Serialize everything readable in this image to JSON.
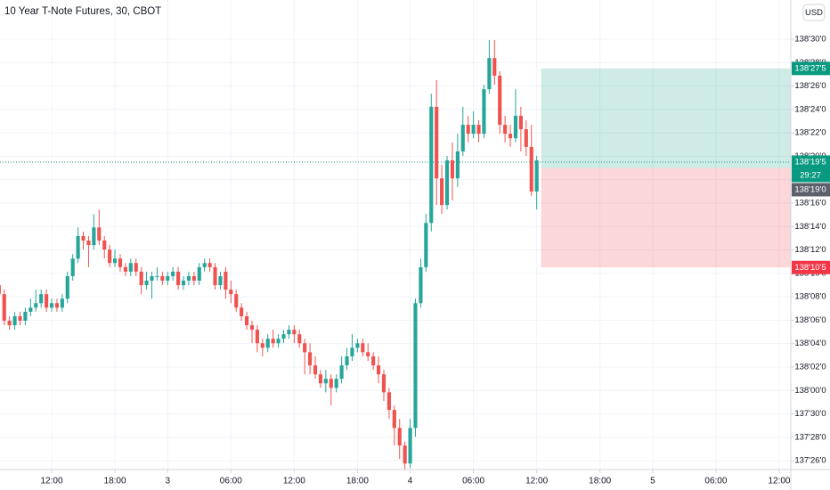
{
  "chart_data": {
    "type": "candlestick",
    "title": "10 Year T-Note Futures, 30, CBOT",
    "currency": "USD",
    "up_color": "#26a69a",
    "down_color": "#ef5350",
    "grid": true,
    "ylim": [
      137.789,
      139.042
    ],
    "xlim": [
      0.2,
      150.2
    ],
    "yticks": [
      {
        "value": 137.8125,
        "label": "137'26'0"
      },
      {
        "value": 137.875,
        "label": "137'28'0"
      },
      {
        "value": 137.9375,
        "label": "137'30'0"
      },
      {
        "value": 138.0,
        "label": "138'00'0"
      },
      {
        "value": 138.0625,
        "label": "138'02'0"
      },
      {
        "value": 138.125,
        "label": "138'04'0"
      },
      {
        "value": 138.1875,
        "label": "138'06'0"
      },
      {
        "value": 138.25,
        "label": "138'08'0"
      },
      {
        "value": 138.3125,
        "label": "138'10'0"
      },
      {
        "value": 138.375,
        "label": "138'12'0"
      },
      {
        "value": 138.4375,
        "label": "138'14'0"
      },
      {
        "value": 138.5,
        "label": "138'16'0"
      },
      {
        "value": 138.5625,
        "label": "138'18'0"
      },
      {
        "value": 138.625,
        "label": "138'20'0"
      },
      {
        "value": 138.6875,
        "label": "138'22'0"
      },
      {
        "value": 138.75,
        "label": "138'24'0"
      },
      {
        "value": 138.8125,
        "label": "138'26'0"
      },
      {
        "value": 138.875,
        "label": "138'28'0"
      },
      {
        "value": 138.9375,
        "label": "138'30'0"
      }
    ],
    "xticks": [
      {
        "value": 10,
        "label": "12:00"
      },
      {
        "value": 22,
        "label": "18:00"
      },
      {
        "value": 32,
        "label": "3"
      },
      {
        "value": 44,
        "label": "06:00"
      },
      {
        "value": 56,
        "label": "12:00"
      },
      {
        "value": 68,
        "label": "18:00"
      },
      {
        "value": 78,
        "label": "4"
      },
      {
        "value": 90,
        "label": "06:00"
      },
      {
        "value": 102,
        "label": "12:00"
      },
      {
        "value": 114,
        "label": "18:00"
      },
      {
        "value": 124,
        "label": "5"
      },
      {
        "value": 136,
        "label": "06:00"
      },
      {
        "value": 148,
        "label": "12:00"
      }
    ],
    "candles": [
      [
        138.281,
        138.293,
        138.245,
        138.257
      ],
      [
        138.257,
        138.269,
        138.174,
        138.186
      ],
      [
        138.186,
        138.198,
        138.162,
        138.174
      ],
      [
        138.174,
        138.21,
        138.162,
        138.198
      ],
      [
        138.198,
        138.21,
        138.174,
        138.186
      ],
      [
        138.186,
        138.221,
        138.174,
        138.21
      ],
      [
        138.21,
        138.245,
        138.198,
        138.221
      ],
      [
        138.221,
        138.269,
        138.21,
        138.233
      ],
      [
        138.233,
        138.269,
        138.221,
        138.257
      ],
      [
        138.257,
        138.269,
        138.21,
        138.221
      ],
      [
        138.221,
        138.245,
        138.21,
        138.233
      ],
      [
        138.233,
        138.245,
        138.21,
        138.221
      ],
      [
        138.221,
        138.257,
        138.21,
        138.245
      ],
      [
        138.245,
        138.317,
        138.233,
        138.305
      ],
      [
        138.305,
        138.364,
        138.293,
        138.352
      ],
      [
        138.352,
        138.435,
        138.34,
        138.412
      ],
      [
        138.412,
        138.424,
        138.376,
        138.4
      ],
      [
        138.4,
        138.412,
        138.329,
        138.388
      ],
      [
        138.388,
        138.471,
        138.376,
        138.435
      ],
      [
        138.435,
        138.483,
        138.388,
        138.4
      ],
      [
        138.4,
        138.412,
        138.352,
        138.376
      ],
      [
        138.376,
        138.388,
        138.329,
        138.34
      ],
      [
        138.34,
        138.376,
        138.329,
        138.352
      ],
      [
        138.352,
        138.364,
        138.317,
        138.329
      ],
      [
        138.329,
        138.34,
        138.305,
        138.317
      ],
      [
        138.317,
        138.352,
        138.305,
        138.34
      ],
      [
        138.34,
        138.352,
        138.305,
        138.317
      ],
      [
        138.317,
        138.329,
        138.257,
        138.281
      ],
      [
        138.281,
        138.317,
        138.269,
        138.293
      ],
      [
        138.293,
        138.317,
        138.245,
        138.305
      ],
      [
        138.305,
        138.329,
        138.293,
        138.305
      ],
      [
        138.305,
        138.317,
        138.281,
        138.293
      ],
      [
        138.293,
        138.317,
        138.281,
        138.305
      ],
      [
        138.305,
        138.329,
        138.293,
        138.317
      ],
      [
        138.317,
        138.329,
        138.269,
        138.281
      ],
      [
        138.281,
        138.305,
        138.269,
        138.293
      ],
      [
        138.293,
        138.317,
        138.281,
        138.305
      ],
      [
        138.305,
        138.317,
        138.281,
        138.293
      ],
      [
        138.293,
        138.34,
        138.281,
        138.329
      ],
      [
        138.329,
        138.352,
        138.317,
        138.34
      ],
      [
        138.34,
        138.352,
        138.317,
        138.329
      ],
      [
        138.329,
        138.34,
        138.269,
        138.281
      ],
      [
        138.281,
        138.317,
        138.269,
        138.305
      ],
      [
        138.317,
        138.329,
        138.245,
        138.269
      ],
      [
        138.269,
        138.293,
        138.233,
        138.257
      ],
      [
        138.257,
        138.269,
        138.21,
        138.221
      ],
      [
        138.221,
        138.233,
        138.186,
        138.198
      ],
      [
        138.198,
        138.21,
        138.162,
        138.174
      ],
      [
        138.174,
        138.186,
        138.126,
        138.162
      ],
      [
        138.162,
        138.174,
        138.102,
        138.126
      ],
      [
        138.126,
        138.138,
        138.091,
        138.114
      ],
      [
        138.114,
        138.15,
        138.102,
        138.138
      ],
      [
        138.138,
        138.162,
        138.114,
        138.126
      ],
      [
        138.126,
        138.15,
        138.114,
        138.138
      ],
      [
        138.138,
        138.162,
        138.126,
        138.15
      ],
      [
        138.15,
        138.174,
        138.138,
        138.162
      ],
      [
        138.162,
        138.174,
        138.126,
        138.15
      ],
      [
        138.15,
        138.162,
        138.114,
        138.126
      ],
      [
        138.126,
        138.138,
        138.043,
        138.102
      ],
      [
        138.102,
        138.126,
        138.043,
        138.067
      ],
      [
        138.067,
        138.091,
        138.031,
        138.043
      ],
      [
        138.043,
        138.055,
        138.007,
        138.019
      ],
      [
        138.019,
        138.055,
        137.995,
        138.031
      ],
      [
        138.031,
        138.043,
        137.96,
        138.007
      ],
      [
        138.007,
        138.043,
        137.995,
        138.031
      ],
      [
        138.031,
        138.091,
        138.019,
        138.067
      ],
      [
        138.067,
        138.114,
        138.055,
        138.091
      ],
      [
        138.091,
        138.15,
        138.079,
        138.114
      ],
      [
        138.114,
        138.138,
        138.102,
        138.126
      ],
      [
        138.126,
        138.138,
        138.091,
        138.102
      ],
      [
        138.102,
        138.126,
        138.079,
        138.091
      ],
      [
        138.091,
        138.102,
        138.055,
        138.067
      ],
      [
        138.067,
        138.091,
        138.019,
        138.043
      ],
      [
        138.043,
        138.055,
        137.972,
        137.995
      ],
      [
        137.995,
        138.007,
        137.924,
        137.948
      ],
      [
        137.948,
        137.96,
        137.853,
        137.9
      ],
      [
        137.9,
        137.924,
        137.817,
        137.853
      ],
      [
        137.853,
        137.864,
        137.781,
        137.805
      ],
      [
        137.805,
        137.924,
        137.793,
        137.9
      ],
      [
        137.9,
        138.245,
        137.876,
        138.233
      ],
      [
        138.233,
        138.352,
        138.221,
        138.329
      ],
      [
        138.329,
        138.471,
        138.317,
        138.447
      ],
      [
        138.447,
        138.792,
        138.424,
        138.757
      ],
      [
        138.757,
        138.828,
        138.495,
        138.566
      ],
      [
        138.566,
        138.602,
        138.471,
        138.495
      ],
      [
        138.495,
        138.626,
        138.483,
        138.614
      ],
      [
        138.614,
        138.662,
        138.507,
        138.566
      ],
      [
        138.566,
        138.685,
        138.543,
        138.638
      ],
      [
        138.638,
        138.757,
        138.626,
        138.709
      ],
      [
        138.709,
        138.733,
        138.662,
        138.685
      ],
      [
        138.685,
        138.745,
        138.673,
        138.709
      ],
      [
        138.709,
        138.721,
        138.662,
        138.685
      ],
      [
        138.685,
        138.816,
        138.673,
        138.804
      ],
      [
        138.804,
        138.935,
        138.792,
        138.887
      ],
      [
        138.887,
        138.935,
        138.816,
        138.84
      ],
      [
        138.84,
        138.852,
        138.685,
        138.709
      ],
      [
        138.709,
        138.733,
        138.662,
        138.685
      ],
      [
        138.685,
        138.709,
        138.65,
        138.673
      ],
      [
        138.673,
        138.804,
        138.662,
        138.733
      ],
      [
        138.733,
        138.757,
        138.638,
        138.697
      ],
      [
        138.697,
        138.721,
        138.626,
        138.65
      ],
      [
        138.65,
        138.709,
        138.519,
        138.531
      ],
      [
        138.531,
        138.626,
        138.483,
        138.614
      ]
    ],
    "last_price": {
      "value": 138.609375,
      "label": "138'19'5"
    },
    "countdown": "29:27",
    "position": {
      "target": {
        "value": 138.859375,
        "label": "138'27'5"
      },
      "entry": {
        "value": 138.59375,
        "label": "138'19'0"
      },
      "stop": {
        "value": 138.328125,
        "label": "138'10'5"
      }
    },
    "target_color": "#089981",
    "stop_color": "#f23645",
    "entry_color": "#5d606b"
  }
}
